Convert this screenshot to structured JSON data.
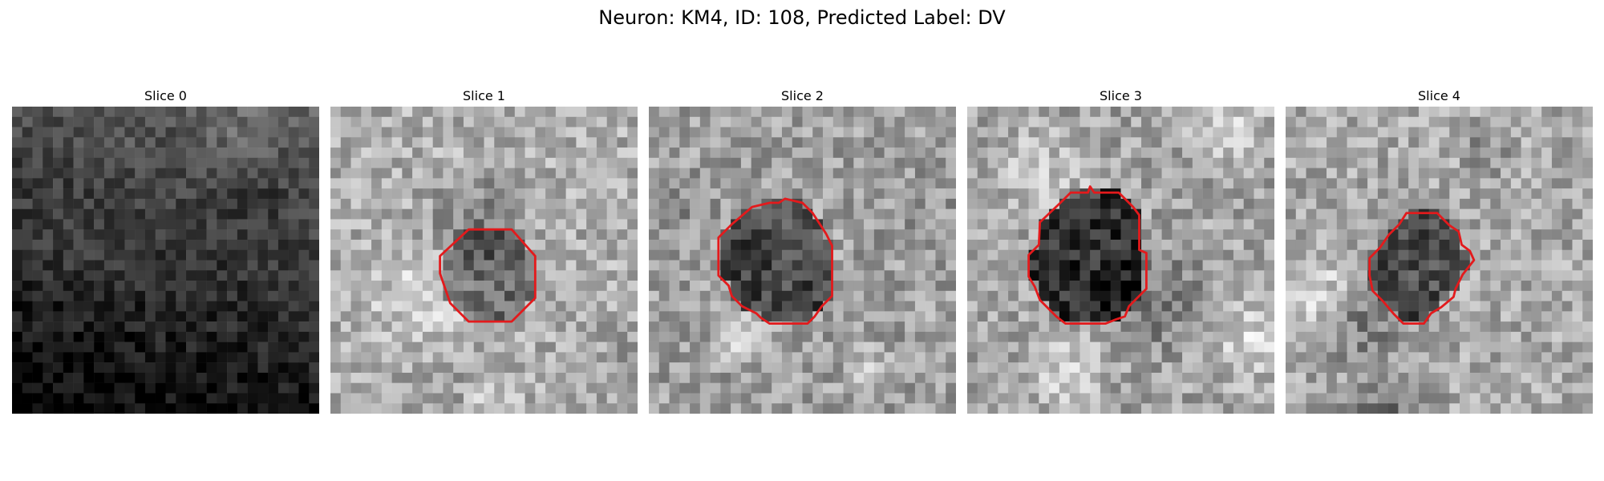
{
  "figure": {
    "title": "Neuron: KM4, ID: 108, Predicted Label: DV",
    "colormap": "gray",
    "contour_color": "#e31a1c"
  },
  "panels": [
    {
      "title": "Slice 0",
      "has_contour": false,
      "background_brightness": 0.2,
      "gradient": "darker toward the bottom-left",
      "contour": []
    },
    {
      "title": "Slice 1",
      "has_contour": true,
      "background_brightness": 0.68,
      "interior_brightness": 0.42,
      "contour": [
        [
          13.5,
          12.0
        ],
        [
          17.7,
          12.0
        ],
        [
          20.0,
          14.6
        ],
        [
          20.0,
          18.7
        ],
        [
          17.7,
          21.0
        ],
        [
          13.5,
          21.0
        ],
        [
          11.7,
          19.2
        ],
        [
          10.7,
          16.3
        ],
        [
          10.7,
          14.6
        ]
      ]
    },
    {
      "title": "Slice 2",
      "has_contour": true,
      "background_brightness": 0.62,
      "interior_brightness": 0.25,
      "contour": [
        [
          11.8,
          9.4
        ],
        [
          12.7,
          9.4
        ],
        [
          13.3,
          9.0
        ],
        [
          15.0,
          9.4
        ],
        [
          16.0,
          10.4
        ],
        [
          17.3,
          12.4
        ],
        [
          17.9,
          13.6
        ],
        [
          17.9,
          18.5
        ],
        [
          16.9,
          19.5
        ],
        [
          16.2,
          20.5
        ],
        [
          15.5,
          21.2
        ],
        [
          11.8,
          21.2
        ],
        [
          10.9,
          20.6
        ],
        [
          10.5,
          20.2
        ],
        [
          9.1,
          19.5
        ],
        [
          8.1,
          18.5
        ],
        [
          7.8,
          17.5
        ],
        [
          6.8,
          16.5
        ],
        [
          6.8,
          12.8
        ],
        [
          8.1,
          11.5
        ],
        [
          10.1,
          9.8
        ]
      ]
    },
    {
      "title": "Slice 3",
      "has_contour": true,
      "background_brightness": 0.64,
      "interior_brightness": 0.18,
      "contour": [
        [
          11.8,
          8.4
        ],
        [
          12.0,
          7.8
        ],
        [
          12.4,
          8.4
        ],
        [
          14.8,
          8.4
        ],
        [
          16.2,
          9.8
        ],
        [
          16.8,
          10.6
        ],
        [
          16.8,
          14.0
        ],
        [
          17.5,
          14.3
        ],
        [
          17.5,
          17.8
        ],
        [
          16.8,
          18.5
        ],
        [
          15.8,
          19.5
        ],
        [
          15.4,
          20.5
        ],
        [
          14.5,
          20.8
        ],
        [
          13.5,
          21.2
        ],
        [
          9.6,
          21.2
        ],
        [
          8.7,
          20.5
        ],
        [
          7.1,
          18.9
        ],
        [
          6.6,
          17.6
        ],
        [
          6.0,
          16.6
        ],
        [
          6.0,
          14.5
        ],
        [
          7.0,
          13.5
        ],
        [
          7.1,
          11.3
        ],
        [
          9.1,
          9.4
        ],
        [
          10.1,
          8.4
        ]
      ]
    },
    {
      "title": "Slice 4",
      "has_contour": true,
      "background_brightness": 0.66,
      "interior_brightness": 0.3,
      "contour": [
        [
          11.8,
          10.4
        ],
        [
          14.8,
          10.4
        ],
        [
          16.0,
          11.6
        ],
        [
          16.9,
          12.2
        ],
        [
          17.2,
          13.5
        ],
        [
          18.0,
          14.1
        ],
        [
          18.4,
          15.0
        ],
        [
          17.3,
          16.4
        ],
        [
          16.6,
          17.8
        ],
        [
          16.4,
          18.6
        ],
        [
          15.2,
          19.6
        ],
        [
          14.2,
          20.2
        ],
        [
          13.5,
          21.2
        ],
        [
          11.5,
          21.2
        ],
        [
          10.6,
          20.3
        ],
        [
          9.5,
          19.0
        ],
        [
          8.5,
          18.0
        ],
        [
          8.2,
          16.5
        ],
        [
          8.2,
          14.8
        ],
        [
          9.2,
          13.8
        ],
        [
          10.1,
          12.5
        ],
        [
          11.1,
          11.5
        ]
      ]
    }
  ]
}
